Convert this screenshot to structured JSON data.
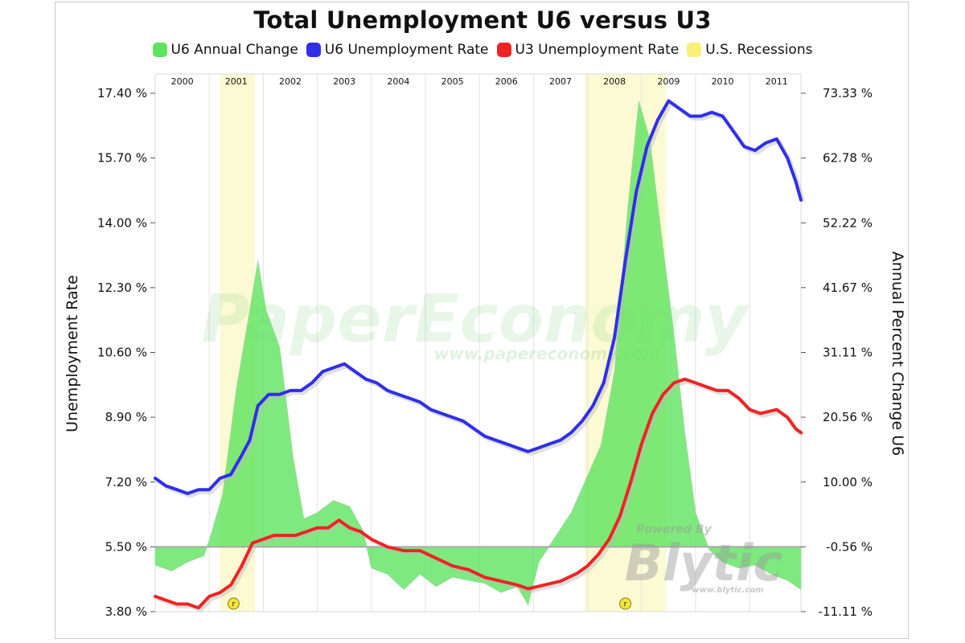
{
  "chart_data": {
    "type": "line",
    "title": "Total Unemployment U6 versus U3",
    "ylabel_left": "Unemployment Rate",
    "ylabel_right": "Annual Percent Change U6",
    "ylim_left": [
      3.8,
      17.4
    ],
    "ylim_right": [
      -11.11,
      73.33
    ],
    "left_ticks": [
      "17.40 %",
      "15.70 %",
      "14.00 %",
      "12.30 %",
      "10.60 %",
      "8.90 %",
      "7.20 %",
      "5.50 %",
      "3.80 %"
    ],
    "left_tick_values": [
      17.4,
      15.7,
      14.0,
      12.3,
      10.6,
      8.9,
      7.2,
      5.5,
      3.8
    ],
    "right_ticks": [
      "73.33 %",
      "62.78 %",
      "52.22 %",
      "41.67 %",
      "31.11 %",
      "20.56 %",
      "10.00 %",
      "-0.56 %",
      "-11.11 %"
    ],
    "right_tick_values": [
      73.33,
      62.78,
      52.22,
      41.67,
      31.11,
      20.56,
      10.0,
      -0.56,
      -11.11
    ],
    "years": [
      "2000",
      "2001",
      "2002",
      "2003",
      "2004",
      "2005",
      "2006",
      "2007",
      "2008",
      "2009",
      "2010",
      "2011"
    ],
    "x_range": [
      2000.0,
      2011.95
    ],
    "recessions": [
      [
        2001.2,
        2001.85
      ],
      [
        2007.95,
        2009.45
      ]
    ],
    "recession_markers": [
      {
        "label": "r",
        "x": 2001.45
      },
      {
        "label": "r",
        "x": 2008.7
      }
    ],
    "series": [
      {
        "name": "U6 Annual Change",
        "color": "#5ee35e",
        "axis": "right",
        "type": "area",
        "points": [
          [
            2000.0,
            -3.5
          ],
          [
            2000.3,
            -4.5
          ],
          [
            2000.6,
            -3.0
          ],
          [
            2000.9,
            -2.0
          ],
          [
            2001.0,
            0.5
          ],
          [
            2001.25,
            8.0
          ],
          [
            2001.5,
            25.0
          ],
          [
            2001.75,
            38.0
          ],
          [
            2001.9,
            46.0
          ],
          [
            2002.05,
            38.0
          ],
          [
            2002.3,
            32.0
          ],
          [
            2002.55,
            14.0
          ],
          [
            2002.75,
            4.0
          ],
          [
            2003.0,
            5.0
          ],
          [
            2003.3,
            7.0
          ],
          [
            2003.6,
            6.0
          ],
          [
            2003.85,
            2.0
          ],
          [
            2004.0,
            -4.0
          ],
          [
            2004.3,
            -5.0
          ],
          [
            2004.6,
            -7.5
          ],
          [
            2004.9,
            -5.0
          ],
          [
            2005.2,
            -7.0
          ],
          [
            2005.5,
            -5.5
          ],
          [
            2005.8,
            -6.0
          ],
          [
            2006.1,
            -6.5
          ],
          [
            2006.4,
            -8.0
          ],
          [
            2006.7,
            -7.0
          ],
          [
            2006.9,
            -10.0
          ],
          [
            2007.1,
            -3.0
          ],
          [
            2007.4,
            1.0
          ],
          [
            2007.7,
            5.0
          ],
          [
            2007.95,
            10.0
          ],
          [
            2008.25,
            16.0
          ],
          [
            2008.5,
            28.0
          ],
          [
            2008.75,
            55.0
          ],
          [
            2008.95,
            72.0
          ],
          [
            2009.15,
            66.0
          ],
          [
            2009.4,
            48.0
          ],
          [
            2009.6,
            34.0
          ],
          [
            2009.8,
            18.0
          ],
          [
            2010.0,
            5.0
          ],
          [
            2010.25,
            -1.0
          ],
          [
            2010.5,
            -3.0
          ],
          [
            2010.8,
            -4.0
          ],
          [
            2011.1,
            -3.5
          ],
          [
            2011.4,
            -5.0
          ],
          [
            2011.7,
            -6.0
          ],
          [
            2011.95,
            -7.5
          ]
        ]
      },
      {
        "name": "U6 Unemployment Rate",
        "color": "#2f2fe8",
        "axis": "left",
        "type": "line",
        "points": [
          [
            2000.0,
            7.3
          ],
          [
            2000.2,
            7.1
          ],
          [
            2000.4,
            7.0
          ],
          [
            2000.6,
            6.9
          ],
          [
            2000.8,
            7.0
          ],
          [
            2001.0,
            7.0
          ],
          [
            2001.2,
            7.3
          ],
          [
            2001.4,
            7.4
          ],
          [
            2001.6,
            7.9
          ],
          [
            2001.75,
            8.3
          ],
          [
            2001.9,
            9.2
          ],
          [
            2002.1,
            9.5
          ],
          [
            2002.3,
            9.5
          ],
          [
            2002.5,
            9.6
          ],
          [
            2002.7,
            9.6
          ],
          [
            2002.9,
            9.8
          ],
          [
            2003.1,
            10.1
          ],
          [
            2003.3,
            10.2
          ],
          [
            2003.5,
            10.3
          ],
          [
            2003.7,
            10.1
          ],
          [
            2003.9,
            9.9
          ],
          [
            2004.1,
            9.8
          ],
          [
            2004.3,
            9.6
          ],
          [
            2004.5,
            9.5
          ],
          [
            2004.7,
            9.4
          ],
          [
            2004.9,
            9.3
          ],
          [
            2005.1,
            9.1
          ],
          [
            2005.3,
            9.0
          ],
          [
            2005.5,
            8.9
          ],
          [
            2005.7,
            8.8
          ],
          [
            2005.9,
            8.6
          ],
          [
            2006.1,
            8.4
          ],
          [
            2006.3,
            8.3
          ],
          [
            2006.5,
            8.2
          ],
          [
            2006.7,
            8.1
          ],
          [
            2006.9,
            8.0
          ],
          [
            2007.1,
            8.1
          ],
          [
            2007.3,
            8.2
          ],
          [
            2007.5,
            8.3
          ],
          [
            2007.7,
            8.5
          ],
          [
            2007.9,
            8.8
          ],
          [
            2008.1,
            9.2
          ],
          [
            2008.3,
            9.8
          ],
          [
            2008.5,
            11.0
          ],
          [
            2008.7,
            13.0
          ],
          [
            2008.9,
            14.8
          ],
          [
            2009.1,
            16.0
          ],
          [
            2009.3,
            16.7
          ],
          [
            2009.5,
            17.2
          ],
          [
            2009.7,
            17.0
          ],
          [
            2009.9,
            16.8
          ],
          [
            2010.1,
            16.8
          ],
          [
            2010.3,
            16.9
          ],
          [
            2010.5,
            16.8
          ],
          [
            2010.7,
            16.4
          ],
          [
            2010.9,
            16.0
          ],
          [
            2011.1,
            15.9
          ],
          [
            2011.3,
            16.1
          ],
          [
            2011.5,
            16.2
          ],
          [
            2011.7,
            15.7
          ],
          [
            2011.85,
            15.1
          ],
          [
            2011.95,
            14.6
          ]
        ]
      },
      {
        "name": "U3 Unemployment Rate",
        "color": "#ee2424",
        "axis": "left",
        "type": "line",
        "points": [
          [
            2000.0,
            4.2
          ],
          [
            2000.2,
            4.1
          ],
          [
            2000.4,
            4.0
          ],
          [
            2000.6,
            4.0
          ],
          [
            2000.8,
            3.9
          ],
          [
            2001.0,
            4.2
          ],
          [
            2001.2,
            4.3
          ],
          [
            2001.4,
            4.5
          ],
          [
            2001.6,
            5.0
          ],
          [
            2001.8,
            5.6
          ],
          [
            2002.0,
            5.7
          ],
          [
            2002.2,
            5.8
          ],
          [
            2002.4,
            5.8
          ],
          [
            2002.6,
            5.8
          ],
          [
            2002.8,
            5.9
          ],
          [
            2003.0,
            6.0
          ],
          [
            2003.2,
            6.0
          ],
          [
            2003.4,
            6.2
          ],
          [
            2003.6,
            6.0
          ],
          [
            2003.8,
            5.9
          ],
          [
            2004.0,
            5.7
          ],
          [
            2004.3,
            5.5
          ],
          [
            2004.6,
            5.4
          ],
          [
            2004.9,
            5.4
          ],
          [
            2005.2,
            5.2
          ],
          [
            2005.5,
            5.0
          ],
          [
            2005.8,
            4.9
          ],
          [
            2006.1,
            4.7
          ],
          [
            2006.4,
            4.6
          ],
          [
            2006.7,
            4.5
          ],
          [
            2006.9,
            4.4
          ],
          [
            2007.2,
            4.5
          ],
          [
            2007.5,
            4.6
          ],
          [
            2007.8,
            4.8
          ],
          [
            2008.0,
            5.0
          ],
          [
            2008.2,
            5.3
          ],
          [
            2008.4,
            5.7
          ],
          [
            2008.6,
            6.3
          ],
          [
            2008.8,
            7.2
          ],
          [
            2009.0,
            8.2
          ],
          [
            2009.2,
            9.0
          ],
          [
            2009.4,
            9.5
          ],
          [
            2009.6,
            9.8
          ],
          [
            2009.8,
            9.9
          ],
          [
            2010.0,
            9.8
          ],
          [
            2010.2,
            9.7
          ],
          [
            2010.4,
            9.6
          ],
          [
            2010.6,
            9.6
          ],
          [
            2010.8,
            9.4
          ],
          [
            2011.0,
            9.1
          ],
          [
            2011.2,
            9.0
          ],
          [
            2011.5,
            9.1
          ],
          [
            2011.7,
            8.9
          ],
          [
            2011.85,
            8.6
          ],
          [
            2011.95,
            8.5
          ]
        ]
      },
      {
        "name": "U.S. Recessions",
        "color": "#f7f075",
        "type": "band"
      }
    ],
    "grid": true,
    "legend_position": "top-center"
  },
  "watermark": {
    "main": "PaperEconomy",
    "sub": "www.papereconomy.com",
    "powered": "Powered By",
    "brand": "Blytic",
    "brand_url": "www.blytic.com"
  }
}
